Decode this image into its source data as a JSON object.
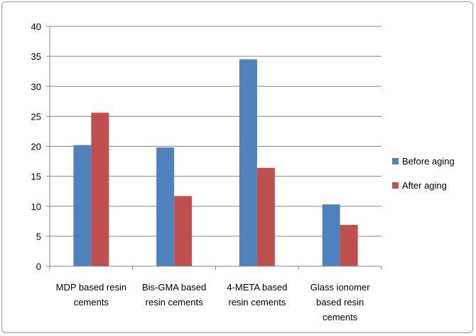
{
  "chart_data": {
    "type": "bar",
    "categories": [
      [
        "MDP based resin",
        "cements"
      ],
      [
        "Bis-GMA based",
        "resin cements"
      ],
      [
        "4-META based",
        "resin cements"
      ],
      [
        "Glass ionomer",
        "based resin",
        "cements"
      ]
    ],
    "series": [
      {
        "name": "Before aging",
        "color": "#4f81bd",
        "values": [
          20.2,
          19.8,
          34.5,
          10.3
        ]
      },
      {
        "name": "After aging",
        "color": "#c0504d",
        "values": [
          25.6,
          11.7,
          16.4,
          6.9
        ]
      }
    ],
    "ylim": [
      0,
      40
    ],
    "yticks": [
      0,
      5,
      10,
      15,
      20,
      25,
      30,
      35,
      40
    ],
    "grid": true,
    "legend_position": "right"
  }
}
